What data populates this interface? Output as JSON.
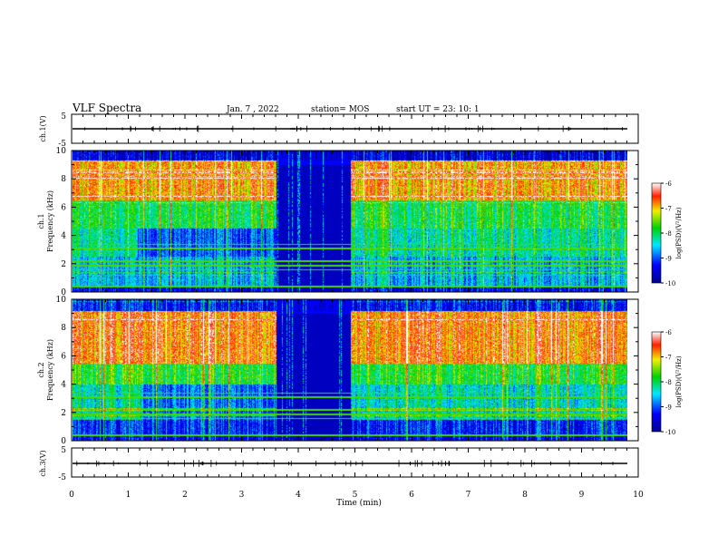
{
  "header": {
    "title": "VLF Spectra",
    "date": "Jan. 7 , 2022",
    "station": "station= MOS",
    "start": "start UT = 23: 10: 1"
  },
  "chart_data": [
    {
      "type": "line",
      "name": "ch1-voltage",
      "ylabel": "ch.1(V)",
      "ylim": [
        -5,
        5
      ],
      "yticks": [
        "5",
        "-5"
      ],
      "xlim": [
        0,
        10
      ],
      "baseline": 0
    },
    {
      "type": "heatmap",
      "name": "ch1-spectrogram",
      "ylabel": "ch.1\nFrequency (kHz)",
      "ylim": [
        0,
        10
      ],
      "yticks": [
        "0",
        "2",
        "4",
        "6",
        "8",
        "10"
      ],
      "xlim": [
        0,
        10
      ],
      "quiet_interval_min": [
        3.6,
        4.9
      ],
      "colorbar": {
        "label": "log(PSD)(V²/Hz)",
        "range": [
          -10,
          -6
        ],
        "ticks": [
          "-10",
          "-9",
          "-8",
          "-7",
          "-6"
        ]
      }
    },
    {
      "type": "heatmap",
      "name": "ch2-spectrogram",
      "ylabel": "ch.2\nFrequency (kHz)",
      "ylim": [
        0,
        10
      ],
      "yticks": [
        "0",
        "2",
        "4",
        "6",
        "8",
        "10"
      ],
      "xlim": [
        0,
        10
      ],
      "quiet_interval_min": [
        3.6,
        4.9
      ],
      "colorbar": {
        "label": "log(PSD)(V²/Hz)",
        "range": [
          -10,
          -6
        ],
        "ticks": [
          "-10",
          "-9",
          "-8",
          "-7",
          "-6"
        ]
      }
    },
    {
      "type": "line",
      "name": "ch3-voltage",
      "ylabel": "ch.3(V)",
      "ylim": [
        -5,
        5
      ],
      "yticks": [
        "5",
        "-5"
      ],
      "xlim": [
        0,
        10
      ],
      "baseline": 0
    }
  ],
  "xaxis": {
    "label": "Time (min)",
    "ticks": [
      "0",
      "1",
      "2",
      "3",
      "4",
      "5",
      "6",
      "7",
      "8",
      "9",
      "10"
    ]
  },
  "colors": {
    "colormap": [
      "#000080",
      "#0000ff",
      "#00ffff",
      "#00ff00",
      "#ffff00",
      "#ff0000"
    ]
  }
}
